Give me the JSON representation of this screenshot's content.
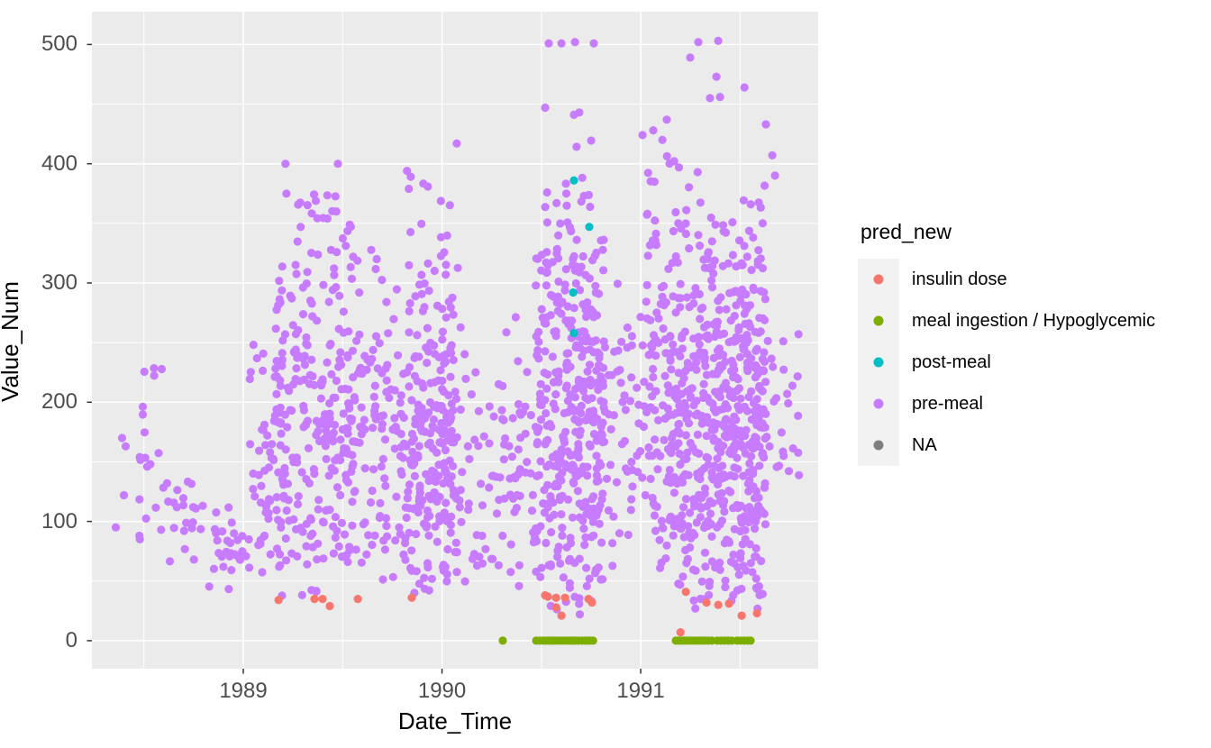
{
  "chart_data": {
    "type": "scatter",
    "xlabel": "Date_Time",
    "ylabel": "Value_Num",
    "x_ticks": [
      1989,
      1990,
      1991
    ],
    "x_tick_labels": [
      "1989",
      "1990",
      "1991"
    ],
    "y_ticks": [
      0,
      100,
      200,
      300,
      400,
      500
    ],
    "y_tick_labels": [
      "0",
      "100",
      "200",
      "300",
      "400",
      "500"
    ],
    "xlim": [
      1988.238,
      1991.893
    ],
    "ylim": [
      -23.5,
      527.5
    ],
    "grid": "on",
    "panel_bg": "#EBEBEB",
    "grid_color": "#FFFFFF",
    "tick_color": "#333333",
    "legend_position": "right",
    "legend_title": "pred_new",
    "point_radius": 4.6,
    "series": [
      {
        "name": "insulin dose",
        "color": "#F8766D",
        "points": [
          [
            1989.177,
            34
          ],
          [
            1989.358,
            35
          ],
          [
            1989.399,
            35
          ],
          [
            1989.435,
            29
          ],
          [
            1989.576,
            35
          ],
          [
            1989.848,
            36
          ],
          [
            1990.519,
            38
          ],
          [
            1990.533,
            37
          ],
          [
            1990.574,
            36
          ],
          [
            1990.574,
            28
          ],
          [
            1990.601,
            21
          ],
          [
            1990.619,
            36
          ],
          [
            1990.737,
            35
          ],
          [
            1990.755,
            32
          ],
          [
            1991.2,
            7
          ],
          [
            1991.227,
            41
          ],
          [
            1991.331,
            32
          ],
          [
            1991.39,
            30
          ],
          [
            1991.444,
            31
          ],
          [
            1991.508,
            21
          ],
          [
            1991.585,
            23
          ]
        ]
      },
      {
        "name": "meal ingestion / Hypoglycemic",
        "color": "#7CAE00",
        "value": 0,
        "x_values": [
          1990.306,
          1990.474,
          1990.492,
          1990.51,
          1990.524,
          1990.537,
          1990.551,
          1990.565,
          1990.578,
          1990.592,
          1990.605,
          1990.619,
          1990.633,
          1990.646,
          1990.66,
          1990.673,
          1990.687,
          1990.705,
          1990.719,
          1990.732,
          1990.746,
          1990.76,
          1991.177,
          1991.19,
          1991.204,
          1991.217,
          1991.231,
          1991.245,
          1991.258,
          1991.272,
          1991.286,
          1991.299,
          1991.313,
          1991.327,
          1991.34,
          1991.358,
          1991.385,
          1991.404,
          1991.422,
          1991.44,
          1991.458,
          1991.485,
          1991.503,
          1991.522,
          1991.54,
          1991.553
        ]
      },
      {
        "name": "post-meal",
        "color": "#00BFC4",
        "points": [
          [
            1990.664,
            386
          ],
          [
            1990.741,
            347
          ],
          [
            1990.66,
            292
          ],
          [
            1990.664,
            258
          ]
        ]
      },
      {
        "name": "pre-meal",
        "color": "#C77CFF",
        "points": [
          [
            1990.537,
            501
          ],
          [
            1990.601,
            501
          ],
          [
            1990.669,
            502
          ],
          [
            1990.764,
            501
          ],
          [
            1991.29,
            502
          ],
          [
            1991.39,
            503
          ],
          [
            1991.249,
            489
          ],
          [
            1991.381,
            473
          ],
          [
            1991.349,
            455
          ],
          [
            1991.399,
            456
          ],
          [
            1991.522,
            464
          ],
          [
            1990.074,
            417
          ],
          [
            1989.212,
            400
          ],
          [
            1989.476,
            400
          ],
          [
            1989.824,
            394
          ],
          [
            1989.833,
            379
          ],
          [
            1990.664,
            441
          ],
          [
            1990.691,
            443
          ],
          [
            1990.519,
            447
          ],
          [
            1988.39,
            170
          ],
          [
            1988.408,
            163
          ],
          [
            1988.399,
            122
          ],
          [
            1988.358,
            95
          ],
          [
            1991.009,
            424
          ],
          [
            1991.063,
            428
          ],
          [
            1991.109,
            420
          ],
          [
            1991.131,
            437
          ],
          [
            1991.63,
            433
          ],
          [
            1991.662,
            407
          ],
          [
            1991.676,
            390
          ]
        ],
        "clusters": [
          {
            "x0": 1988.45,
            "x1": 1988.63,
            "vmin": 60,
            "vmax": 292,
            "n": 22
          },
          {
            "x0": 1988.63,
            "x1": 1988.79,
            "vmin": 45,
            "vmax": 165,
            "n": 18
          },
          {
            "x0": 1988.79,
            "x1": 1989.03,
            "vmin": 42,
            "vmax": 135,
            "n": 32
          },
          {
            "x0": 1989.03,
            "x1": 1989.16,
            "vmin": 45,
            "vmax": 300,
            "n": 42
          },
          {
            "x0": 1989.16,
            "x1": 1989.38,
            "vmin": 32,
            "vmax": 398,
            "n": 150
          },
          {
            "x0": 1989.38,
            "x1": 1989.56,
            "vmin": 38,
            "vmax": 398,
            "n": 135
          },
          {
            "x0": 1989.56,
            "x1": 1989.73,
            "vmin": 35,
            "vmax": 360,
            "n": 75
          },
          {
            "x0": 1989.73,
            "x1": 1989.83,
            "vmin": 40,
            "vmax": 300,
            "n": 40
          },
          {
            "x0": 1989.83,
            "x1": 1990.08,
            "vmin": 35,
            "vmax": 400,
            "n": 230
          },
          {
            "x0": 1990.08,
            "x1": 1990.31,
            "vmin": 40,
            "vmax": 300,
            "n": 48
          },
          {
            "x0": 1990.31,
            "x1": 1990.47,
            "vmin": 40,
            "vmax": 305,
            "n": 45
          },
          {
            "x0": 1990.47,
            "x1": 1990.82,
            "vmin": 18,
            "vmax": 448,
            "n": 380
          },
          {
            "x0": 1990.82,
            "x1": 1991.03,
            "vmin": 45,
            "vmax": 380,
            "n": 55
          },
          {
            "x0": 1991.03,
            "x1": 1991.18,
            "vmin": 45,
            "vmax": 438,
            "n": 120
          },
          {
            "x0": 1991.18,
            "x1": 1991.43,
            "vmin": 25,
            "vmax": 430,
            "n": 290
          },
          {
            "x0": 1991.43,
            "x1": 1991.63,
            "vmin": 20,
            "vmax": 428,
            "n": 265
          },
          {
            "x0": 1991.63,
            "x1": 1991.8,
            "vmin": 90,
            "vmax": 300,
            "n": 24
          }
        ]
      },
      {
        "name": "NA",
        "color": "#7F7F7F",
        "points": []
      }
    ]
  }
}
